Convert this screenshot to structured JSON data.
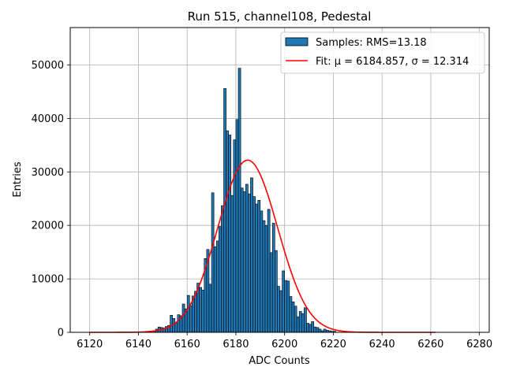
{
  "chart_data": {
    "type": "bar",
    "title": "Run 515, channel108, Pedestal",
    "xlabel": "ADC Counts",
    "ylabel": "Entries",
    "xlim": [
      6112,
      6284
    ],
    "ylim": [
      0,
      57000
    ],
    "xticks": [
      6120,
      6140,
      6160,
      6180,
      6200,
      6220,
      6240,
      6260,
      6280
    ],
    "yticks": [
      0,
      10000,
      20000,
      30000,
      40000,
      50000
    ],
    "grid": true,
    "legend_position": "top-right",
    "colors": {
      "bars": "#1f77b4",
      "fit": "#ff0000"
    },
    "histogram": {
      "name": "Samples: RMS=13.18",
      "bin_width": 1,
      "bins": [
        {
          "x": 6146,
          "y": 300
        },
        {
          "x": 6147,
          "y": 600
        },
        {
          "x": 6148,
          "y": 1000
        },
        {
          "x": 6149,
          "y": 900
        },
        {
          "x": 6150,
          "y": 800
        },
        {
          "x": 6151,
          "y": 1100
        },
        {
          "x": 6152,
          "y": 1300
        },
        {
          "x": 6153,
          "y": 3200
        },
        {
          "x": 6154,
          "y": 2600
        },
        {
          "x": 6155,
          "y": 1700
        },
        {
          "x": 6156,
          "y": 3300
        },
        {
          "x": 6157,
          "y": 3100
        },
        {
          "x": 6158,
          "y": 5300
        },
        {
          "x": 6159,
          "y": 4400
        },
        {
          "x": 6160,
          "y": 6900
        },
        {
          "x": 6161,
          "y": 5000
        },
        {
          "x": 6162,
          "y": 6800
        },
        {
          "x": 6163,
          "y": 7700
        },
        {
          "x": 6164,
          "y": 9200
        },
        {
          "x": 6165,
          "y": 8400
        },
        {
          "x": 6166,
          "y": 7900
        },
        {
          "x": 6167,
          "y": 13800
        },
        {
          "x": 6168,
          "y": 15500
        },
        {
          "x": 6169,
          "y": 9000
        },
        {
          "x": 6170,
          "y": 26100
        },
        {
          "x": 6171,
          "y": 16000
        },
        {
          "x": 6172,
          "y": 17100
        },
        {
          "x": 6173,
          "y": 19800
        },
        {
          "x": 6174,
          "y": 23700
        },
        {
          "x": 6175,
          "y": 45600
        },
        {
          "x": 6176,
          "y": 37700
        },
        {
          "x": 6177,
          "y": 36900
        },
        {
          "x": 6178,
          "y": 25600
        },
        {
          "x": 6179,
          "y": 36000
        },
        {
          "x": 6180,
          "y": 39800
        },
        {
          "x": 6181,
          "y": 49400
        },
        {
          "x": 6182,
          "y": 27000
        },
        {
          "x": 6183,
          "y": 26300
        },
        {
          "x": 6184,
          "y": 27700
        },
        {
          "x": 6185,
          "y": 25900
        },
        {
          "x": 6186,
          "y": 28900
        },
        {
          "x": 6187,
          "y": 25400
        },
        {
          "x": 6188,
          "y": 24000
        },
        {
          "x": 6189,
          "y": 24700
        },
        {
          "x": 6190,
          "y": 22700
        },
        {
          "x": 6191,
          "y": 20900
        },
        {
          "x": 6192,
          "y": 20000
        },
        {
          "x": 6193,
          "y": 23000
        },
        {
          "x": 6194,
          "y": 14900
        },
        {
          "x": 6195,
          "y": 20400
        },
        {
          "x": 6196,
          "y": 15300
        },
        {
          "x": 6197,
          "y": 8600
        },
        {
          "x": 6198,
          "y": 7800
        },
        {
          "x": 6199,
          "y": 11500
        },
        {
          "x": 6200,
          "y": 9700
        },
        {
          "x": 6201,
          "y": 9600
        },
        {
          "x": 6202,
          "y": 6700
        },
        {
          "x": 6203,
          "y": 5700
        },
        {
          "x": 6204,
          "y": 4900
        },
        {
          "x": 6205,
          "y": 2900
        },
        {
          "x": 6206,
          "y": 3900
        },
        {
          "x": 6207,
          "y": 3500
        },
        {
          "x": 6208,
          "y": 4600
        },
        {
          "x": 6209,
          "y": 1700
        },
        {
          "x": 6210,
          "y": 1500
        },
        {
          "x": 6211,
          "y": 2000
        },
        {
          "x": 6212,
          "y": 1000
        },
        {
          "x": 6213,
          "y": 900
        },
        {
          "x": 6214,
          "y": 600
        },
        {
          "x": 6215,
          "y": 300
        },
        {
          "x": 6216,
          "y": 600
        },
        {
          "x": 6217,
          "y": 400
        },
        {
          "x": 6218,
          "y": 300
        },
        {
          "x": 6219,
          "y": 200
        },
        {
          "x": 6220,
          "y": 200
        }
      ]
    },
    "fit": {
      "name": "Fit: μ = 6184.857, σ = 12.314",
      "type": "gaussian",
      "mu": 6184.857,
      "sigma": 12.314,
      "amplitude": 32200,
      "x_range": [
        6120,
        6262
      ]
    }
  }
}
